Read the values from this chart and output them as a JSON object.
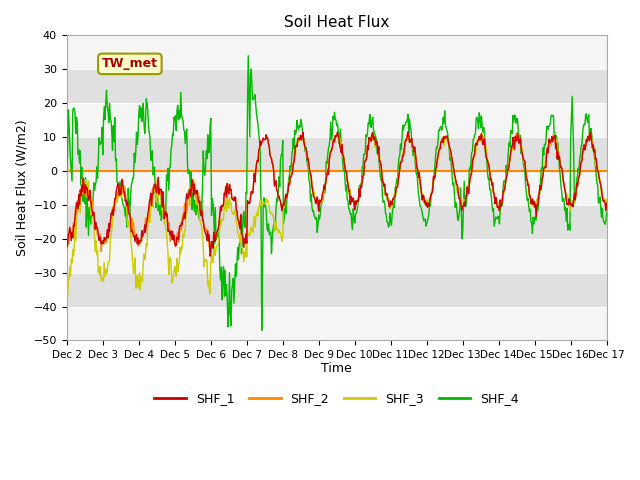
{
  "title": "Soil Heat Flux",
  "ylabel": "Soil Heat Flux (W/m2)",
  "xlabel": "Time",
  "ylim": [
    -50,
    40
  ],
  "xlim": [
    0,
    360
  ],
  "yticks": [
    -50,
    -40,
    -30,
    -20,
    -10,
    0,
    10,
    20,
    30,
    40
  ],
  "xtick_labels": [
    "Dec 2",
    "Dec 3",
    "Dec 4",
    "Dec 5",
    "Dec 6",
    "Dec 7",
    "Dec 8",
    "Dec 9",
    "Dec 10",
    "Dec 11",
    "Dec 12",
    "Dec 13",
    "Dec 14",
    "Dec 15",
    "Dec 16",
    "Dec 17"
  ],
  "xtick_positions": [
    0,
    24,
    48,
    72,
    96,
    120,
    144,
    168,
    192,
    216,
    240,
    264,
    288,
    312,
    336,
    360
  ],
  "colors": {
    "SHF_1": "#cc0000",
    "SHF_2": "#ff8800",
    "SHF_3": "#cccc00",
    "SHF_4": "#00bb00"
  },
  "hline_color": "#ff8800",
  "fig_bg": "#ffffff",
  "plot_bg": "#e8e8e8",
  "band_light": "#f5f5f5",
  "band_dark": "#e0e0e0",
  "annotation_text": "TW_met",
  "legend_entries": [
    "SHF_1",
    "SHF_2",
    "SHF_3",
    "SHF_4"
  ]
}
